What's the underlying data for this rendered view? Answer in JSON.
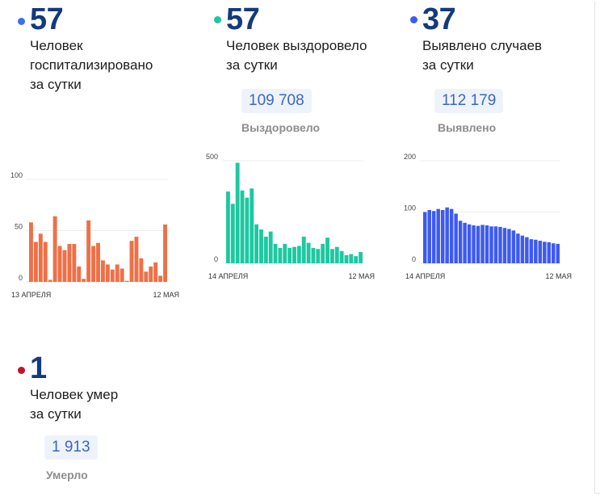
{
  "colors": {
    "hospital": "#ee7047",
    "recovered": "#1dc8a1",
    "cases": "#3d5af1",
    "death": "#c8102e",
    "number": "#133a7c"
  },
  "stats": {
    "hospitalized": {
      "value": "57",
      "line1": "Человек",
      "line2": "госпитализировано",
      "line3": "за сутки"
    },
    "recovered": {
      "value": "57",
      "line1": "Человек выздоровело",
      "line2": "за сутки",
      "total": "109 708",
      "total_label": "Выздоровело"
    },
    "cases": {
      "value": "37",
      "line1": "Выявлено случаев",
      "line2": "за сутки",
      "total": "112 179",
      "total_label": "Выявлено"
    },
    "deaths": {
      "value": "1",
      "line1": "Человек умер",
      "line2": "за сутки",
      "total": "1 913",
      "total_label": "Умерло"
    }
  },
  "chart_data": [
    {
      "type": "bar",
      "series": [
        {
          "values": [
            58,
            39,
            47,
            39,
            2,
            64,
            35,
            31,
            37,
            37,
            15,
            3,
            60,
            35,
            38,
            21,
            17,
            12,
            17,
            13,
            1,
            40,
            44,
            23,
            10,
            15,
            19,
            6,
            56
          ]
        }
      ],
      "x_start_label": "13 АПРЕЛЯ",
      "x_end_label": "12 МАЯ",
      "yticks": [
        0,
        50,
        100
      ],
      "ylim": [
        0,
        100
      ],
      "grid": true
    },
    {
      "type": "bar",
      "series": [
        {
          "values": [
            350,
            290,
            490,
            355,
            320,
            365,
            190,
            165,
            130,
            155,
            95,
            75,
            95,
            75,
            80,
            85,
            130,
            100,
            75,
            70,
            95,
            125,
            70,
            80,
            60,
            40,
            45,
            35,
            55
          ]
        }
      ],
      "x_start_label": "14 АПРЕЛЯ",
      "x_end_label": "12 МАЯ",
      "yticks": [
        0,
        500
      ],
      "ylim": [
        0,
        500
      ],
      "grid": true
    },
    {
      "type": "bar",
      "series": [
        {
          "values": [
            100,
            104,
            102,
            106,
            104,
            109,
            106,
            97,
            83,
            79,
            76,
            74,
            73,
            75,
            74,
            72,
            72,
            71,
            69,
            67,
            64,
            58,
            54,
            51,
            47,
            46,
            44,
            42,
            41,
            39,
            38
          ]
        }
      ],
      "x_start_label": "14 АПРЕЛЯ",
      "x_end_label": "12 МАЯ",
      "yticks": [
        0,
        100,
        200
      ],
      "ylim": [
        0,
        200
      ],
      "grid": true
    }
  ]
}
